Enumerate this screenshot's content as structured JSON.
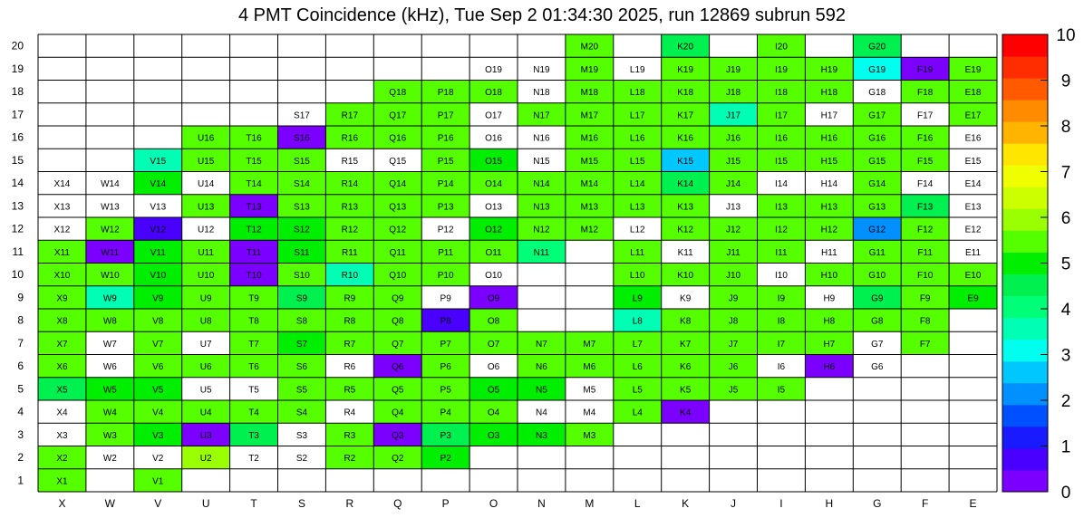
{
  "title": "4 PMT Coincidence (kHz), Tue Sep  2 01:34:30 2025, run 12869 subrun 592",
  "chart_data": {
    "type": "heatmap",
    "title": "4 PMT Coincidence (kHz), Tue Sep  2 01:34:30 2025, run 12869 subrun 592",
    "xlabel": "",
    "ylabel": "",
    "columns": [
      "X",
      "W",
      "V",
      "U",
      "T",
      "S",
      "R",
      "Q",
      "P",
      "O",
      "N",
      "M",
      "L",
      "K",
      "J",
      "I",
      "H",
      "G",
      "F",
      "E"
    ],
    "rows": [
      "1",
      "2",
      "3",
      "4",
      "5",
      "6",
      "7",
      "8",
      "9",
      "10",
      "11",
      "12",
      "13",
      "14",
      "15",
      "16",
      "17",
      "18",
      "19",
      "20"
    ],
    "zlim": [
      0,
      10
    ],
    "colorbar_ticks": [
      "0",
      "1",
      "2",
      "3",
      "4",
      "5",
      "6",
      "7",
      "8",
      "9",
      "10"
    ],
    "grid": true,
    "cells": [
      {
        "label": "X1",
        "v": 5.3
      },
      {
        "label": "V1",
        "v": 5.3
      },
      {
        "label": "X2",
        "v": 5.5
      },
      {
        "label": "W2",
        "v": 0
      },
      {
        "label": "V2",
        "v": 0
      },
      {
        "label": "U2",
        "v": 5.8
      },
      {
        "label": "T2",
        "v": 0
      },
      {
        "label": "S2",
        "v": 0
      },
      {
        "label": "R2",
        "v": 5.3
      },
      {
        "label": "Q2",
        "v": 5.3
      },
      {
        "label": "P2",
        "v": 5.2
      },
      {
        "label": "X3",
        "v": 0
      },
      {
        "label": "W3",
        "v": 5.3
      },
      {
        "label": "V3",
        "v": 5.1
      },
      {
        "label": "U3",
        "v": 0.3
      },
      {
        "label": "T3",
        "v": 4.6
      },
      {
        "label": "S3",
        "v": 0
      },
      {
        "label": "R3",
        "v": 5.4
      },
      {
        "label": "Q3",
        "v": 0.3
      },
      {
        "label": "P3",
        "v": 4.5
      },
      {
        "label": "O3",
        "v": 4.8
      },
      {
        "label": "N3",
        "v": 4.8
      },
      {
        "label": "M3",
        "v": 5.3
      },
      {
        "label": "X4",
        "v": 0
      },
      {
        "label": "W4",
        "v": 5.4
      },
      {
        "label": "V4",
        "v": 5.3
      },
      {
        "label": "U4",
        "v": 5.5
      },
      {
        "label": "T4",
        "v": 5.3
      },
      {
        "label": "S4",
        "v": 5.5
      },
      {
        "label": "R4",
        "v": 0
      },
      {
        "label": "Q4",
        "v": 5.4
      },
      {
        "label": "P4",
        "v": 5.4
      },
      {
        "label": "O4",
        "v": 5.3
      },
      {
        "label": "N4",
        "v": 0
      },
      {
        "label": "M4",
        "v": 0
      },
      {
        "label": "L4",
        "v": 5.6
      },
      {
        "label": "K4",
        "v": 0.4
      },
      {
        "label": "X5",
        "v": 4.6
      },
      {
        "label": "W5",
        "v": 5.2
      },
      {
        "label": "V5",
        "v": 5.2
      },
      {
        "label": "U5",
        "v": 0
      },
      {
        "label": "T5",
        "v": 0
      },
      {
        "label": "S5",
        "v": 5.3
      },
      {
        "label": "R5",
        "v": 5.4
      },
      {
        "label": "Q5",
        "v": 5.4
      },
      {
        "label": "P5",
        "v": 5.3
      },
      {
        "label": "O5",
        "v": 5.1
      },
      {
        "label": "N5",
        "v": 5.1
      },
      {
        "label": "M5",
        "v": 0
      },
      {
        "label": "L5",
        "v": 5.4
      },
      {
        "label": "K5",
        "v": 5.3
      },
      {
        "label": "J5",
        "v": 5.4
      },
      {
        "label": "I5",
        "v": 5.3
      },
      {
        "label": "X6",
        "v": 5.5
      },
      {
        "label": "W6",
        "v": 0
      },
      {
        "label": "V6",
        "v": 5.3
      },
      {
        "label": "U6",
        "v": 5.3
      },
      {
        "label": "T6",
        "v": 5.3
      },
      {
        "label": "S6",
        "v": 5.4
      },
      {
        "label": "R6",
        "v": 0
      },
      {
        "label": "Q6",
        "v": 0.3
      },
      {
        "label": "P6",
        "v": 5.3
      },
      {
        "label": "O6",
        "v": 0
      },
      {
        "label": "N6",
        "v": 5.3
      },
      {
        "label": "M6",
        "v": 5.3
      },
      {
        "label": "L6",
        "v": 5.3
      },
      {
        "label": "K6",
        "v": 5.3
      },
      {
        "label": "J6",
        "v": 5.4
      },
      {
        "label": "I6",
        "v": 0
      },
      {
        "label": "H6",
        "v": 0.2
      },
      {
        "label": "G6",
        "v": 0
      },
      {
        "label": "X7",
        "v": 5.4
      },
      {
        "label": "W7",
        "v": 0
      },
      {
        "label": "V7",
        "v": 5.3
      },
      {
        "label": "U7",
        "v": 0
      },
      {
        "label": "T7",
        "v": 5.3
      },
      {
        "label": "S7",
        "v": 5.2
      },
      {
        "label": "R7",
        "v": 5.4
      },
      {
        "label": "Q7",
        "v": 5.3
      },
      {
        "label": "P7",
        "v": 5.4
      },
      {
        "label": "O7",
        "v": 5.3
      },
      {
        "label": "N7",
        "v": 5.4
      },
      {
        "label": "M7",
        "v": 5.4
      },
      {
        "label": "L7",
        "v": 5.4
      },
      {
        "label": "K7",
        "v": 5.4
      },
      {
        "label": "J7",
        "v": 5.4
      },
      {
        "label": "I7",
        "v": 5.4
      },
      {
        "label": "H7",
        "v": 5.4
      },
      {
        "label": "G7",
        "v": 0
      },
      {
        "label": "F7",
        "v": 5.4
      },
      {
        "label": "X8",
        "v": 5.4
      },
      {
        "label": "W8",
        "v": 5.4
      },
      {
        "label": "V8",
        "v": 5.3
      },
      {
        "label": "U8",
        "v": 5.3
      },
      {
        "label": "T8",
        "v": 5.3
      },
      {
        "label": "S8",
        "v": 5.4
      },
      {
        "label": "R8",
        "v": 5.4
      },
      {
        "label": "Q8",
        "v": 5.3
      },
      {
        "label": "P8",
        "v": 0.8
      },
      {
        "label": "O8",
        "v": 5.3
      },
      {
        "label": "L8",
        "v": 3.6
      },
      {
        "label": "K8",
        "v": 5.4
      },
      {
        "label": "J8",
        "v": 5.4
      },
      {
        "label": "I8",
        "v": 5.4
      },
      {
        "label": "H8",
        "v": 5.4
      },
      {
        "label": "G8",
        "v": 5.3
      },
      {
        "label": "F8",
        "v": 5.4
      },
      {
        "label": "X9",
        "v": 5.5
      },
      {
        "label": "W9",
        "v": 3.6
      },
      {
        "label": "V9",
        "v": 5.1
      },
      {
        "label": "U9",
        "v": 5.4
      },
      {
        "label": "T9",
        "v": 5.4
      },
      {
        "label": "S9",
        "v": 4.5
      },
      {
        "label": "R9",
        "v": 5.4
      },
      {
        "label": "Q9",
        "v": 5.5
      },
      {
        "label": "P9",
        "v": 0
      },
      {
        "label": "O9",
        "v": 0.3
      },
      {
        "label": "L9",
        "v": 5.1
      },
      {
        "label": "K9",
        "v": 0
      },
      {
        "label": "J9",
        "v": 5.4
      },
      {
        "label": "I9",
        "v": 5.4
      },
      {
        "label": "H9",
        "v": 0
      },
      {
        "label": "G9",
        "v": 4.5
      },
      {
        "label": "F9",
        "v": 5.4
      },
      {
        "label": "E9",
        "v": 5.1
      },
      {
        "label": "X10",
        "v": 5.5
      },
      {
        "label": "W10",
        "v": 5.3
      },
      {
        "label": "V10",
        "v": 5.1
      },
      {
        "label": "U10",
        "v": 5.3
      },
      {
        "label": "T10",
        "v": 0.3
      },
      {
        "label": "S10",
        "v": 5.3
      },
      {
        "label": "R10",
        "v": 3.6
      },
      {
        "label": "Q10",
        "v": 5.3
      },
      {
        "label": "P10",
        "v": 5.4
      },
      {
        "label": "O10",
        "v": 0
      },
      {
        "label": "L10",
        "v": 5.3
      },
      {
        "label": "K10",
        "v": 5.3
      },
      {
        "label": "J10",
        "v": 5.4
      },
      {
        "label": "I10",
        "v": 0
      },
      {
        "label": "H10",
        "v": 5.4
      },
      {
        "label": "G10",
        "v": 5.3
      },
      {
        "label": "F10",
        "v": 5.4
      },
      {
        "label": "E10",
        "v": 5.5
      },
      {
        "label": "X11",
        "v": 5.5
      },
      {
        "label": "W11",
        "v": 0.3
      },
      {
        "label": "V11",
        "v": 5.1
      },
      {
        "label": "U11",
        "v": 5.3
      },
      {
        "label": "T11",
        "v": 0.3
      },
      {
        "label": "S11",
        "v": 5.2
      },
      {
        "label": "R11",
        "v": 5.3
      },
      {
        "label": "Q11",
        "v": 5.3
      },
      {
        "label": "P11",
        "v": 5.4
      },
      {
        "label": "O11",
        "v": 5.3
      },
      {
        "label": "N11",
        "v": 4.2
      },
      {
        "label": "L11",
        "v": 5.4
      },
      {
        "label": "K11",
        "v": 0
      },
      {
        "label": "J11",
        "v": 5.4
      },
      {
        "label": "I11",
        "v": 5.4
      },
      {
        "label": "H11",
        "v": 0
      },
      {
        "label": "G11",
        "v": 5.3
      },
      {
        "label": "F11",
        "v": 5.4
      },
      {
        "label": "E11",
        "v": 0
      },
      {
        "label": "X12",
        "v": 0
      },
      {
        "label": "W12",
        "v": 5.6
      },
      {
        "label": "V12",
        "v": 0.9
      },
      {
        "label": "U12",
        "v": 0
      },
      {
        "label": "T12",
        "v": 5.2
      },
      {
        "label": "S12",
        "v": 5.1
      },
      {
        "label": "R12",
        "v": 5.3
      },
      {
        "label": "Q12",
        "v": 5.3
      },
      {
        "label": "P12",
        "v": 0
      },
      {
        "label": "O12",
        "v": 5.2
      },
      {
        "label": "N12",
        "v": 5.3
      },
      {
        "label": "M12",
        "v": 5.3
      },
      {
        "label": "L12",
        "v": 0
      },
      {
        "label": "K12",
        "v": 5.4
      },
      {
        "label": "J12",
        "v": 5.4
      },
      {
        "label": "I12",
        "v": 5.4
      },
      {
        "label": "H12",
        "v": 5.4
      },
      {
        "label": "G12",
        "v": 2.3
      },
      {
        "label": "F12",
        "v": 5.4
      },
      {
        "label": "E12",
        "v": 0
      },
      {
        "label": "X13",
        "v": 0
      },
      {
        "label": "W13",
        "v": 0
      },
      {
        "label": "V13",
        "v": 0
      },
      {
        "label": "U13",
        "v": 5.3
      },
      {
        "label": "T13",
        "v": 0.3
      },
      {
        "label": "S13",
        "v": 5.5
      },
      {
        "label": "R13",
        "v": 5.4
      },
      {
        "label": "Q13",
        "v": 5.3
      },
      {
        "label": "P13",
        "v": 5.4
      },
      {
        "label": "O13",
        "v": 0
      },
      {
        "label": "N13",
        "v": 5.3
      },
      {
        "label": "M13",
        "v": 5.3
      },
      {
        "label": "L13",
        "v": 5.3
      },
      {
        "label": "K13",
        "v": 5.4
      },
      {
        "label": "J13",
        "v": 0
      },
      {
        "label": "I13",
        "v": 5.3
      },
      {
        "label": "H13",
        "v": 5.3
      },
      {
        "label": "G13",
        "v": 5.4
      },
      {
        "label": "F13",
        "v": 4.6
      },
      {
        "label": "E13",
        "v": 0
      },
      {
        "label": "X14",
        "v": 0
      },
      {
        "label": "W14",
        "v": 0
      },
      {
        "label": "V14",
        "v": 5.1
      },
      {
        "label": "U14",
        "v": 0
      },
      {
        "label": "T14",
        "v": 5.5
      },
      {
        "label": "S14",
        "v": 5.5
      },
      {
        "label": "R14",
        "v": 5.4
      },
      {
        "label": "Q14",
        "v": 5.3
      },
      {
        "label": "P14",
        "v": 5.4
      },
      {
        "label": "O14",
        "v": 5.3
      },
      {
        "label": "N14",
        "v": 5.4
      },
      {
        "label": "M14",
        "v": 5.4
      },
      {
        "label": "L14",
        "v": 5.4
      },
      {
        "label": "K14",
        "v": 4.5
      },
      {
        "label": "J14",
        "v": 5.4
      },
      {
        "label": "I14",
        "v": 0
      },
      {
        "label": "H14",
        "v": 0
      },
      {
        "label": "G14",
        "v": 5.3
      },
      {
        "label": "F14",
        "v": 0
      },
      {
        "label": "E14",
        "v": 0
      },
      {
        "label": "V15",
        "v": 3.6
      },
      {
        "label": "U15",
        "v": 5.3
      },
      {
        "label": "T15",
        "v": 5.4
      },
      {
        "label": "S15",
        "v": 5.3
      },
      {
        "label": "R15",
        "v": 0
      },
      {
        "label": "Q15",
        "v": 0
      },
      {
        "label": "P15",
        "v": 5.3
      },
      {
        "label": "O15",
        "v": 5.2
      },
      {
        "label": "N15",
        "v": 0
      },
      {
        "label": "M15",
        "v": 5.4
      },
      {
        "label": "L15",
        "v": 5.4
      },
      {
        "label": "K15",
        "v": 2.8
      },
      {
        "label": "J15",
        "v": 5.4
      },
      {
        "label": "I15",
        "v": 5.4
      },
      {
        "label": "H15",
        "v": 5.4
      },
      {
        "label": "G15",
        "v": 5.3
      },
      {
        "label": "F15",
        "v": 5.4
      },
      {
        "label": "E15",
        "v": 0
      },
      {
        "label": "U16",
        "v": 5.3
      },
      {
        "label": "T16",
        "v": 5.4
      },
      {
        "label": "S16",
        "v": 0.3
      },
      {
        "label": "R16",
        "v": 5.3
      },
      {
        "label": "Q16",
        "v": 5.3
      },
      {
        "label": "P16",
        "v": 5.3
      },
      {
        "label": "O16",
        "v": 0
      },
      {
        "label": "N16",
        "v": 0
      },
      {
        "label": "M16",
        "v": 5.3
      },
      {
        "label": "L16",
        "v": 5.3
      },
      {
        "label": "K16",
        "v": 5.3
      },
      {
        "label": "J16",
        "v": 5.4
      },
      {
        "label": "I16",
        "v": 5.3
      },
      {
        "label": "H16",
        "v": 5.3
      },
      {
        "label": "G16",
        "v": 5.3
      },
      {
        "label": "F16",
        "v": 5.3
      },
      {
        "label": "E16",
        "v": 0
      },
      {
        "label": "S17",
        "v": 0
      },
      {
        "label": "R17",
        "v": 5.4
      },
      {
        "label": "Q17",
        "v": 5.3
      },
      {
        "label": "P17",
        "v": 5.3
      },
      {
        "label": "O17",
        "v": 0
      },
      {
        "label": "N17",
        "v": 5.4
      },
      {
        "label": "M17",
        "v": 5.4
      },
      {
        "label": "L17",
        "v": 5.4
      },
      {
        "label": "K17",
        "v": 5.4
      },
      {
        "label": "J17",
        "v": 3.6
      },
      {
        "label": "I17",
        "v": 5.3
      },
      {
        "label": "H17",
        "v": 0
      },
      {
        "label": "G17",
        "v": 5.4
      },
      {
        "label": "F17",
        "v": 0
      },
      {
        "label": "E17",
        "v": 5.5
      },
      {
        "label": "Q18",
        "v": 5.3
      },
      {
        "label": "P18",
        "v": 5.4
      },
      {
        "label": "O18",
        "v": 5.3
      },
      {
        "label": "N18",
        "v": 0
      },
      {
        "label": "M18",
        "v": 5.4
      },
      {
        "label": "L18",
        "v": 5.4
      },
      {
        "label": "K18",
        "v": 5.4
      },
      {
        "label": "J18",
        "v": 5.4
      },
      {
        "label": "I18",
        "v": 5.4
      },
      {
        "label": "H18",
        "v": 5.4
      },
      {
        "label": "G18",
        "v": 0
      },
      {
        "label": "F18",
        "v": 5.4
      },
      {
        "label": "E18",
        "v": 5.5
      },
      {
        "label": "O19",
        "v": 0
      },
      {
        "label": "N19",
        "v": 0
      },
      {
        "label": "M19",
        "v": 5.4
      },
      {
        "label": "L19",
        "v": 0
      },
      {
        "label": "K19",
        "v": 5.4
      },
      {
        "label": "J19",
        "v": 5.4
      },
      {
        "label": "I19",
        "v": 5.3
      },
      {
        "label": "H19",
        "v": 5.3
      },
      {
        "label": "G19",
        "v": 3.0
      },
      {
        "label": "F19",
        "v": 0.3
      },
      {
        "label": "E19",
        "v": 5.4
      },
      {
        "label": "M20",
        "v": 5.4
      },
      {
        "label": "K20",
        "v": 4.5
      },
      {
        "label": "I20",
        "v": 5.4
      },
      {
        "label": "G20",
        "v": 4.6
      }
    ]
  }
}
